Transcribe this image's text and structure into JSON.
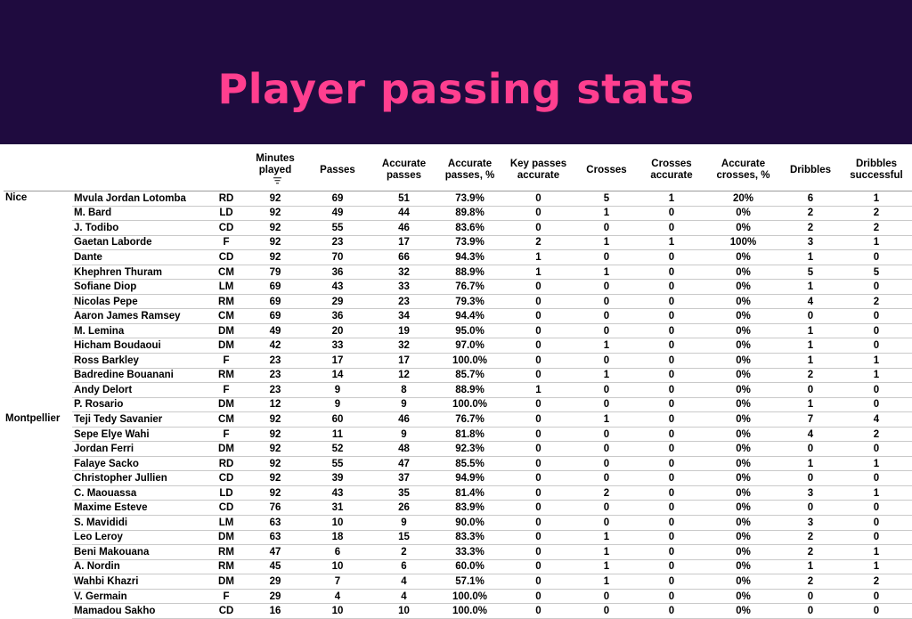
{
  "title": "Player passing stats",
  "colors": {
    "banner": "#1f0b3f",
    "title": "#ff3f8f"
  },
  "columns": [
    "Minutes played",
    "Passes",
    "Accurate passes",
    "Accurate passes, %",
    "Key passes accurate",
    "Crosses",
    "Crosses accurate",
    "Accurate crosses, %",
    "Dribbles",
    "Dribbles successful"
  ],
  "sort_icon": "sort-descending-icon",
  "teams": [
    {
      "name": "Nice",
      "players": [
        [
          "Mvula Jordan Lotomba",
          "RD",
          "92",
          "69",
          "51",
          "73.9%",
          "0",
          "5",
          "1",
          "20%",
          "6",
          "1"
        ],
        [
          "M. Bard",
          "LD",
          "92",
          "49",
          "44",
          "89.8%",
          "0",
          "1",
          "0",
          "0%",
          "2",
          "2"
        ],
        [
          "J. Todibo",
          "CD",
          "92",
          "55",
          "46",
          "83.6%",
          "0",
          "0",
          "0",
          "0%",
          "2",
          "2"
        ],
        [
          "Gaetan Laborde",
          "F",
          "92",
          "23",
          "17",
          "73.9%",
          "2",
          "1",
          "1",
          "100%",
          "3",
          "1"
        ],
        [
          "Dante",
          "CD",
          "92",
          "70",
          "66",
          "94.3%",
          "1",
          "0",
          "0",
          "0%",
          "1",
          "0"
        ],
        [
          "Khephren Thuram",
          "CM",
          "79",
          "36",
          "32",
          "88.9%",
          "1",
          "1",
          "0",
          "0%",
          "5",
          "5"
        ],
        [
          "Sofiane Diop",
          "LM",
          "69",
          "43",
          "33",
          "76.7%",
          "0",
          "0",
          "0",
          "0%",
          "1",
          "0"
        ],
        [
          "Nicolas Pepe",
          "RM",
          "69",
          "29",
          "23",
          "79.3%",
          "0",
          "0",
          "0",
          "0%",
          "4",
          "2"
        ],
        [
          "Aaron James Ramsey",
          "CM",
          "69",
          "36",
          "34",
          "94.4%",
          "0",
          "0",
          "0",
          "0%",
          "0",
          "0"
        ],
        [
          "M. Lemina",
          "DM",
          "49",
          "20",
          "19",
          "95.0%",
          "0",
          "0",
          "0",
          "0%",
          "1",
          "0"
        ],
        [
          "Hicham Boudaoui",
          "DM",
          "42",
          "33",
          "32",
          "97.0%",
          "0",
          "1",
          "0",
          "0%",
          "1",
          "0"
        ],
        [
          "Ross Barkley",
          "F",
          "23",
          "17",
          "17",
          "100.0%",
          "0",
          "0",
          "0",
          "0%",
          "1",
          "1"
        ],
        [
          "Badredine Bouanani",
          "RM",
          "23",
          "14",
          "12",
          "85.7%",
          "0",
          "1",
          "0",
          "0%",
          "2",
          "1"
        ],
        [
          "Andy Delort",
          "F",
          "23",
          "9",
          "8",
          "88.9%",
          "1",
          "0",
          "0",
          "0%",
          "0",
          "0"
        ],
        [
          "P. Rosario",
          "DM",
          "12",
          "9",
          "9",
          "100.0%",
          "0",
          "0",
          "0",
          "0%",
          "1",
          "0"
        ]
      ]
    },
    {
      "name": "Montpellier",
      "players": [
        [
          "Teji Tedy Savanier",
          "CM",
          "92",
          "60",
          "46",
          "76.7%",
          "0",
          "1",
          "0",
          "0%",
          "7",
          "4"
        ],
        [
          "Sepe Elye Wahi",
          "F",
          "92",
          "11",
          "9",
          "81.8%",
          "0",
          "0",
          "0",
          "0%",
          "4",
          "2"
        ],
        [
          "Jordan Ferri",
          "DM",
          "92",
          "52",
          "48",
          "92.3%",
          "0",
          "0",
          "0",
          "0%",
          "0",
          "0"
        ],
        [
          "Falaye Sacko",
          "RD",
          "92",
          "55",
          "47",
          "85.5%",
          "0",
          "0",
          "0",
          "0%",
          "1",
          "1"
        ],
        [
          "Christopher Jullien",
          "CD",
          "92",
          "39",
          "37",
          "94.9%",
          "0",
          "0",
          "0",
          "0%",
          "0",
          "0"
        ],
        [
          "C. Maouassa",
          "LD",
          "92",
          "43",
          "35",
          "81.4%",
          "0",
          "2",
          "0",
          "0%",
          "3",
          "1"
        ],
        [
          "Maxime Esteve",
          "CD",
          "76",
          "31",
          "26",
          "83.9%",
          "0",
          "0",
          "0",
          "0%",
          "0",
          "0"
        ],
        [
          "S. Mavididi",
          "LM",
          "63",
          "10",
          "9",
          "90.0%",
          "0",
          "0",
          "0",
          "0%",
          "3",
          "0"
        ],
        [
          "Leo Leroy",
          "DM",
          "63",
          "18",
          "15",
          "83.3%",
          "0",
          "1",
          "0",
          "0%",
          "2",
          "0"
        ],
        [
          "Beni Makouana",
          "RM",
          "47",
          "6",
          "2",
          "33.3%",
          "0",
          "1",
          "0",
          "0%",
          "2",
          "1"
        ],
        [
          "A. Nordin",
          "RM",
          "45",
          "10",
          "6",
          "60.0%",
          "0",
          "1",
          "0",
          "0%",
          "1",
          "1"
        ],
        [
          "Wahbi Khazri",
          "DM",
          "29",
          "7",
          "4",
          "57.1%",
          "0",
          "1",
          "0",
          "0%",
          "2",
          "2"
        ],
        [
          "V. Germain",
          "F",
          "29",
          "4",
          "4",
          "100.0%",
          "0",
          "0",
          "0",
          "0%",
          "0",
          "0"
        ],
        [
          "Mamadou Sakho",
          "CD",
          "16",
          "10",
          "10",
          "100.0%",
          "0",
          "0",
          "0",
          "0%",
          "0",
          "0"
        ]
      ]
    }
  ]
}
